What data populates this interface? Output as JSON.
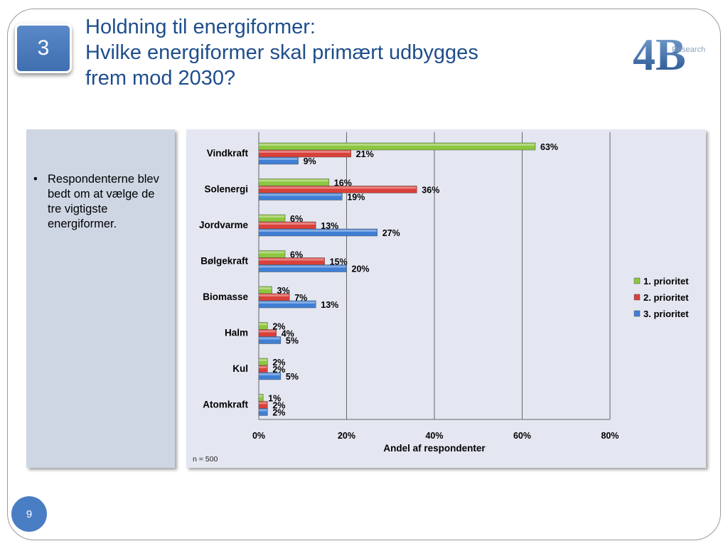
{
  "slide": {
    "section_number": "3",
    "title_lines": [
      "Holdning til energiformer:",
      "Hvilke energiformer skal primært udbygges",
      "frem mod 2030?"
    ],
    "logo_text": "4B",
    "logo_word": "Research",
    "bullet": "Respondenterne blev bedt om at vælge de tre vigtigste energiformer.",
    "page_number": "9"
  },
  "chart_data": {
    "type": "bar",
    "orientation": "horizontal",
    "categories": [
      "Vindkraft",
      "Solenergi",
      "Jordvarme",
      "Bølgekraft",
      "Biomasse",
      "Halm",
      "Kul",
      "Atomkraft"
    ],
    "series": [
      {
        "name": "1. prioritet",
        "color": "#8dc63f",
        "values": [
          63,
          16,
          6,
          6,
          3,
          2,
          2,
          1
        ]
      },
      {
        "name": "2. prioritet",
        "color": "#d9403a",
        "values": [
          21,
          36,
          13,
          15,
          7,
          4,
          2,
          2
        ]
      },
      {
        "name": "3. prioritet",
        "color": "#3f7fd4",
        "values": [
          9,
          19,
          27,
          20,
          13,
          5,
          5,
          2
        ]
      }
    ],
    "value_suffix": "%",
    "xlim": [
      0,
      80
    ],
    "xticks": [
      "0%",
      "20%",
      "40%",
      "60%",
      "80%"
    ],
    "xtick_values": [
      0,
      20,
      40,
      60,
      80
    ],
    "xlabel": "Andel af respondenter",
    "note": "n = 500",
    "grid": true,
    "legend_position": "right"
  }
}
